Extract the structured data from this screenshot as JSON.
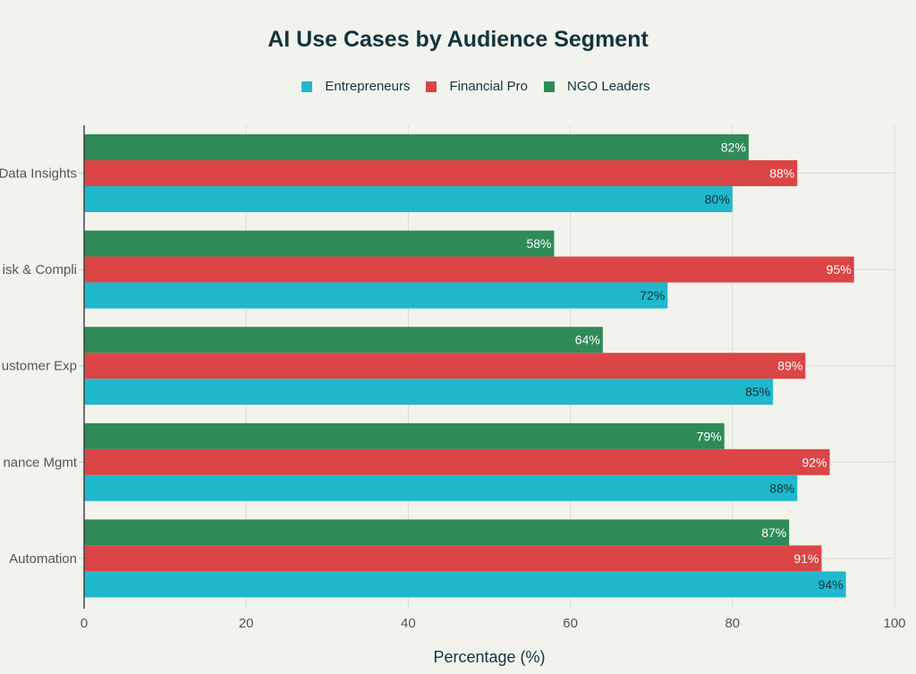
{
  "chart_data": {
    "type": "bar",
    "orientation": "horizontal",
    "title": "AI Use Cases by Audience Segment",
    "xlabel": "Percentage (%)",
    "ylabel": "",
    "xlim": [
      0,
      100
    ],
    "xticks": [
      0,
      20,
      40,
      60,
      80,
      100
    ],
    "grid": true,
    "legend_position": "top-center",
    "categories": [
      "Data Insights",
      "isk & Compli",
      "ustomer Exp",
      "nance Mgmt",
      "Automation"
    ],
    "series": [
      {
        "name": "Entrepreneurs",
        "color": "#1fb8cd",
        "values": [
          80,
          72,
          85,
          88,
          94
        ],
        "labels": [
          "80%",
          "72%",
          "85%",
          "88%",
          "94%"
        ]
      },
      {
        "name": "Financial Pro",
        "color": "#db4545",
        "values": [
          88,
          95,
          89,
          92,
          91
        ],
        "labels": [
          "88%",
          "95%",
          "89%",
          "92%",
          "91%"
        ]
      },
      {
        "name": "NGO Leaders",
        "color": "#2e8b57",
        "values": [
          82,
          58,
          64,
          79,
          87
        ],
        "labels": [
          "82%",
          "58%",
          "64%",
          "79%",
          "87%"
        ]
      }
    ]
  }
}
